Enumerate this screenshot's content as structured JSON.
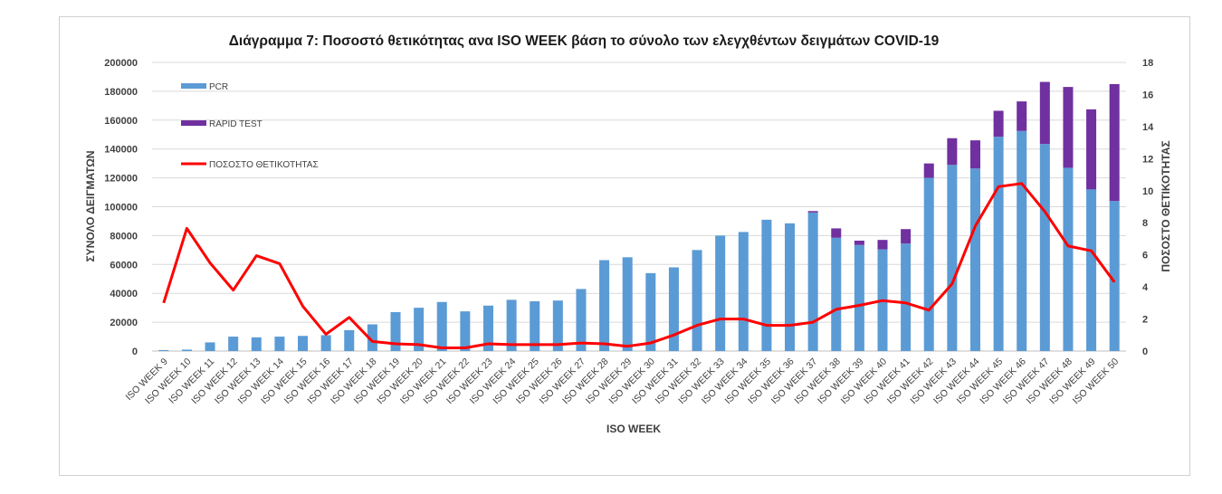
{
  "chart_data": {
    "type": "bar",
    "title": "Διάγραμμα 7: Ποσοστό θετικότητας ανα ISO WEEK  βάση το σύνολο των ελεγχθέντων δειγμάτων COVID-19",
    "xlabel": "ISO WEEK",
    "ylabel": "ΣΥΝΟΛΟ  ΔΕΙΓΜΑΤΩΝ",
    "y2label": "ΠΟΣΟΣΤΟ ΘΕΤΙΚΟΤΗΤΑΣ",
    "ylim": [
      0,
      200000
    ],
    "y2lim": [
      0,
      18
    ],
    "yticks": [
      "0",
      "20000",
      "40000",
      "60000",
      "80000",
      "100000",
      "120000",
      "140000",
      "160000",
      "180000",
      "200000"
    ],
    "y2ticks": [
      "0",
      "2",
      "4",
      "6",
      "8",
      "10",
      "12",
      "14",
      "16",
      "18"
    ],
    "grid": true,
    "legend_position": "top-left",
    "stacked": true,
    "categories": [
      "ISO WEEK 9",
      "ISO WEEK 10",
      "ISO WEEK 11",
      "ISO WEEK 12",
      "ISO WEEK 13",
      "ISO WEEK 14",
      "ISO WEEK 15",
      "ISO WEEK 16",
      "ISO WEEK 17",
      "ISO WEEK 18",
      "ISO WEEK 19",
      "ISO WEEK 20",
      "ISO WEEK 21",
      "ISO WEEK 22",
      "ISO WEEK 23",
      "ISO WEEK 24",
      "ISO WEEK 25",
      "ISO WEEK 26",
      "ISO WEEK 27",
      "ISO WEEK 28",
      "ISO WEEK 29",
      "ISO WEEK 30",
      "ISO WEEK 31",
      "ISO WEEK 32",
      "ISO WEEK 33",
      "ISO WEEK 34",
      "ISO WEEK 35",
      "ISO WEEK 36",
      "ISO WEEK 37",
      "ISO WEEK 38",
      "ISO WEEK 39",
      "ISO WEEK 40",
      "ISO WEEK 41",
      "ISO WEEK 42",
      "ISO WEEK 43",
      "ISO WEEK 44",
      "ISO WEEK 45",
      "ISO WEEK 46",
      "ISO WEEK 47",
      "ISO WEEK 48",
      "ISO WEEK 49",
      "ISO WEEK 50"
    ],
    "series": [
      {
        "name": "PCR",
        "type": "bar",
        "axis": "left",
        "color": "#5b9bd5",
        "values": [
          700,
          1000,
          6000,
          10000,
          9500,
          10000,
          10500,
          11000,
          14500,
          18500,
          27000,
          30000,
          34000,
          27500,
          31500,
          35500,
          34500,
          35000,
          43000,
          63000,
          65000,
          54000,
          58000,
          70000,
          80000,
          82500,
          91000,
          88500,
          96000,
          78500,
          73500,
          70500,
          74500,
          120000,
          129000,
          126500,
          148500,
          152500,
          143500,
          127000,
          112000,
          104000
        ]
      },
      {
        "name": "RAPID TEST",
        "type": "bar",
        "axis": "left",
        "color": "#7030a0",
        "values": [
          0,
          0,
          0,
          0,
          0,
          0,
          0,
          0,
          0,
          0,
          0,
          0,
          0,
          0,
          0,
          0,
          0,
          0,
          0,
          0,
          0,
          0,
          0,
          0,
          0,
          0,
          0,
          0,
          1000,
          6500,
          3000,
          6500,
          10000,
          10000,
          18500,
          19500,
          18000,
          20500,
          43000,
          56000,
          55500,
          81000
        ]
      },
      {
        "name": "ΠΟΣΟΣΤΟ ΘΕΤΙΚΟΤΗΤΑΣ",
        "type": "line",
        "axis": "right",
        "color": "#ff0000",
        "values": [
          3.0,
          7.65,
          5.5,
          3.8,
          5.95,
          5.45,
          2.8,
          1.05,
          2.1,
          0.6,
          0.45,
          0.4,
          0.2,
          0.2,
          0.45,
          0.4,
          0.4,
          0.4,
          0.5,
          0.45,
          0.3,
          0.5,
          1.0,
          1.6,
          2.0,
          2.0,
          1.6,
          1.6,
          1.8,
          2.6,
          2.85,
          3.15,
          3.0,
          2.55,
          4.2,
          7.8,
          10.25,
          10.45,
          8.7,
          6.55,
          6.25,
          4.3
        ]
      }
    ]
  }
}
